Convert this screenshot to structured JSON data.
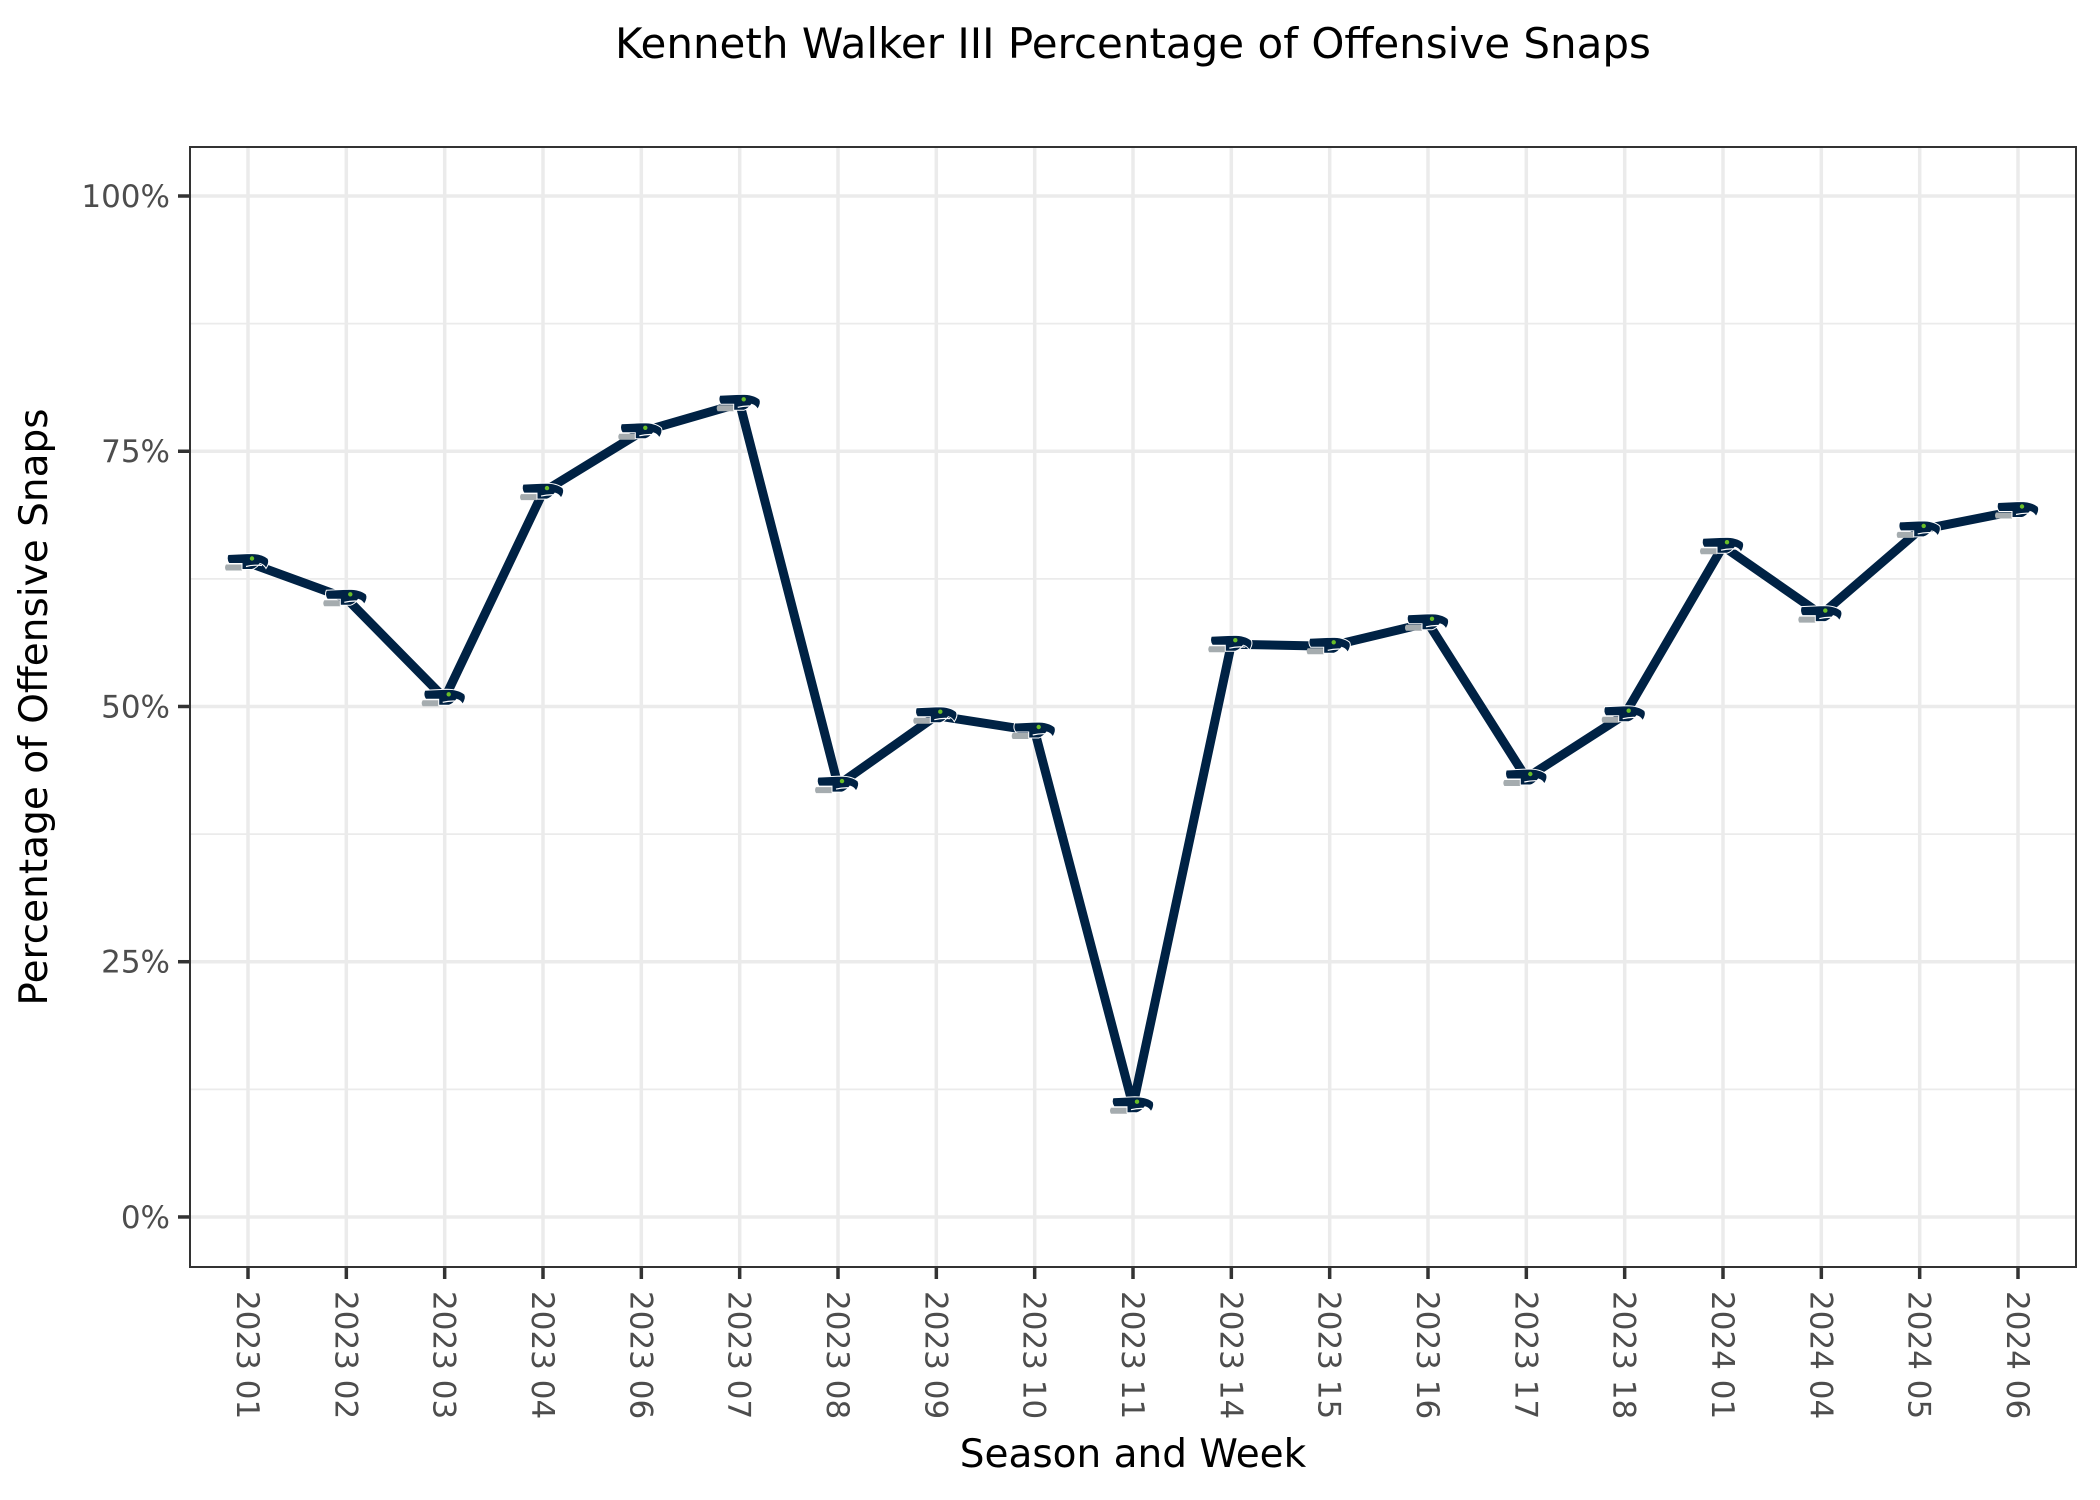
{
  "chart_data": {
    "type": "line",
    "title": "Kenneth Walker III Percentage of Offensive Snaps",
    "xlabel": "Season and Week",
    "ylabel": "Percentage of Offensive Snaps",
    "categories": [
      "2023 01",
      "2023 02",
      "2023 03",
      "2023 04",
      "2023 06",
      "2023 07",
      "2023 08",
      "2023 09",
      "2023 10",
      "2023 11",
      "2023 14",
      "2023 15",
      "2023 16",
      "2023 17",
      "2023 18",
      "2024 01",
      "2024 04",
      "2024 05",
      "2024 06"
    ],
    "series": [
      {
        "name": "Kenneth Walker III",
        "values": [
          64.1,
          60.6,
          50.8,
          71.0,
          76.9,
          79.7,
          42.3,
          49.1,
          47.6,
          10.9,
          56.1,
          55.9,
          58.2,
          43.0,
          49.2,
          65.7,
          59.0,
          67.3,
          69.2
        ],
        "color": "#002244",
        "marker": "seahawks-logo"
      }
    ],
    "yticks": [
      0,
      25,
      50,
      75,
      100
    ],
    "ytick_labels": [
      "0%",
      "25%",
      "50%",
      "75%",
      "100%"
    ],
    "yminor": [
      12.5,
      37.5,
      62.5,
      87.5
    ],
    "ylim": [
      -4.9,
      104.8
    ],
    "grid": true,
    "legend": "none",
    "colors": {
      "line": "#002244",
      "logo_navy": "#002244",
      "logo_grey": "#a5acaf",
      "logo_green": "#69be28",
      "grid": "#ebebeb",
      "tick_text": "#4d4d4d"
    }
  }
}
